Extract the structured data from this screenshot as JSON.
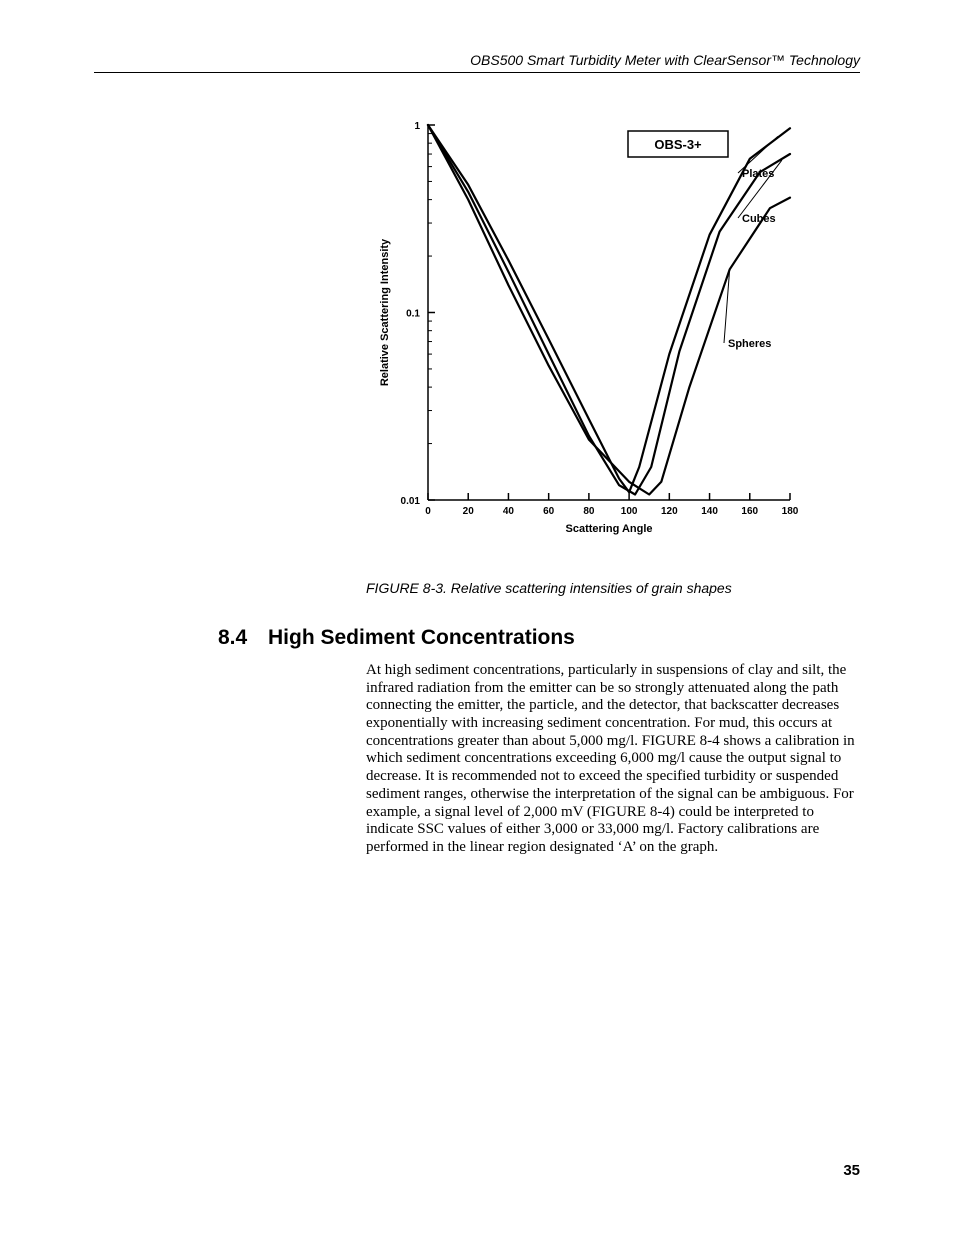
{
  "header": {
    "running_title": "OBS500 Smart Turbidity Meter with ClearSensor™ Technology"
  },
  "figure": {
    "caption": "FIGURE 8-3.  Relative scattering intensities of grain shapes",
    "chart": {
      "type": "line",
      "x_label": "Scattering Angle",
      "y_label": "Relative Scattering Intensity",
      "title_box": "OBS-3+",
      "x_ticks": [
        "0",
        "20",
        "40",
        "60",
        "80",
        "100",
        "120",
        "140",
        "160",
        "180"
      ],
      "y_ticks": [
        "0.01",
        "0.1",
        "1"
      ],
      "xlim": [
        0,
        180
      ],
      "ylim_log": [
        0.01,
        1
      ],
      "scale": "log-y",
      "axis_color": "#000000",
      "line_color": "#000000",
      "line_width": 2.2,
      "background_color": "#ffffff",
      "title_box_border": "#000000",
      "font_family": "Arial",
      "axis_label_fontsize": 11,
      "tick_fontsize": 10,
      "title_fontsize": 13,
      "series_labels": {
        "plates": "Plates",
        "cubes": "Cubes",
        "spheres": "Spheres"
      },
      "series": {
        "plates": [
          [
            0,
            1.0
          ],
          [
            20,
            0.48
          ],
          [
            40,
            0.19
          ],
          [
            60,
            0.072
          ],
          [
            80,
            0.027
          ],
          [
            95,
            0.013
          ],
          [
            100,
            0.011
          ],
          [
            105,
            0.015
          ],
          [
            120,
            0.06
          ],
          [
            140,
            0.26
          ],
          [
            160,
            0.66
          ],
          [
            180,
            0.96
          ]
        ],
        "cubes": [
          [
            0,
            1.0
          ],
          [
            20,
            0.44
          ],
          [
            40,
            0.165
          ],
          [
            60,
            0.06
          ],
          [
            80,
            0.022
          ],
          [
            95,
            0.012
          ],
          [
            103,
            0.0107
          ],
          [
            111,
            0.015
          ],
          [
            125,
            0.062
          ],
          [
            145,
            0.27
          ],
          [
            165,
            0.56
          ],
          [
            180,
            0.7
          ]
        ],
        "spheres": [
          [
            0,
            1.0
          ],
          [
            20,
            0.4
          ],
          [
            40,
            0.14
          ],
          [
            60,
            0.052
          ],
          [
            80,
            0.021
          ],
          [
            100,
            0.0125
          ],
          [
            110,
            0.0107
          ],
          [
            116,
            0.0125
          ],
          [
            130,
            0.04
          ],
          [
            150,
            0.17
          ],
          [
            170,
            0.36
          ],
          [
            180,
            0.41
          ]
        ]
      }
    }
  },
  "section": {
    "number": "8.4",
    "title": "High Sediment Concentrations",
    "body": "At high sediment concentrations, particularly in suspensions of clay and silt, the infrared radiation from the emitter can be so strongly attenuated along the path connecting the emitter, the particle, and the detector, that backscatter decreases exponentially with increasing sediment concentration.  For mud, this occurs at concentrations greater than about 5,000 mg/l.  FIGURE 8-4 shows a calibration in which sediment concentrations exceeding 6,000 mg/l cause the output signal to decrease.  It is recommended not to exceed the specified turbidity or suspended sediment ranges, otherwise the interpretation of the signal can be ambiguous.  For example, a signal level of 2,000 mV (FIGURE 8-4) could be interpreted to indicate SSC values of either 3,000 or 33,000 mg/l.  Factory calibrations are performed in the linear region designated ‘A’ on the graph."
  },
  "page": {
    "number": "35"
  }
}
